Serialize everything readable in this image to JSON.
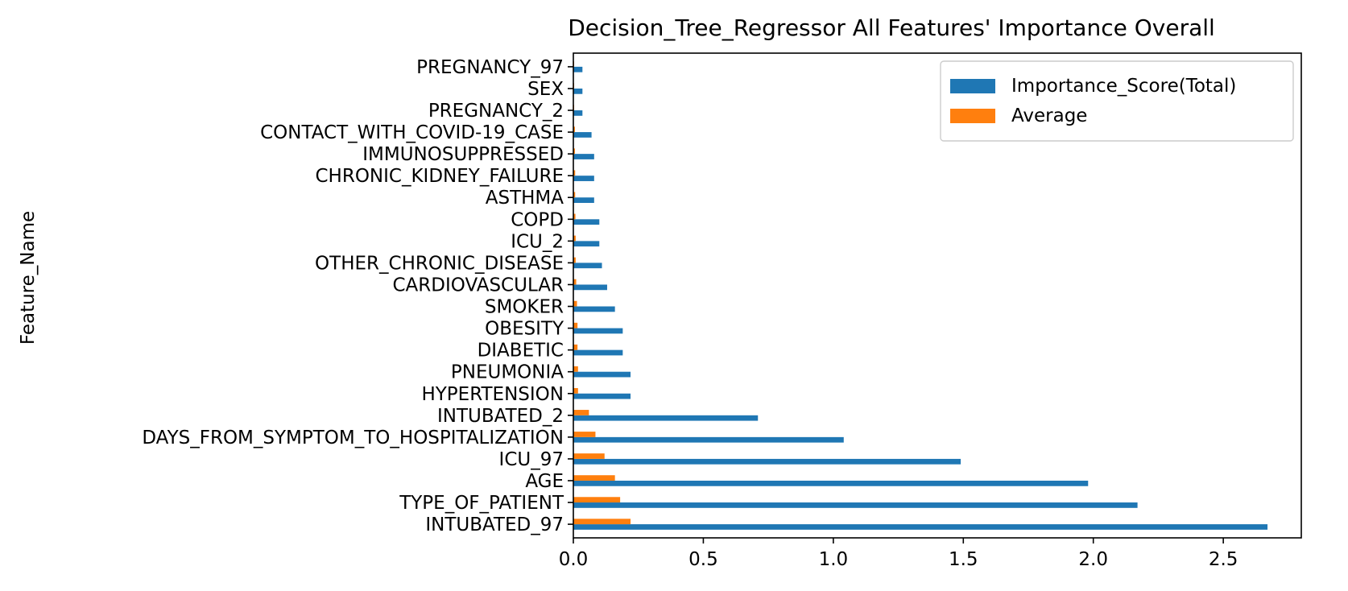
{
  "chart_data": {
    "type": "bar",
    "orientation": "horizontal",
    "title": "Decision_Tree_Regressor All Features' Importance Overall",
    "xlabel": "",
    "ylabel": "Feature_Name",
    "xlim": [
      0,
      2.8
    ],
    "xticks": [
      0.0,
      0.5,
      1.0,
      1.5,
      2.0,
      2.5
    ],
    "xtick_labels": [
      "0.0",
      "0.5",
      "1.0",
      "1.5",
      "2.0",
      "2.5"
    ],
    "grid": false,
    "legend_position": "top-right",
    "categories": [
      "INTUBATED_97",
      "TYPE_OF_PATIENT",
      "AGE",
      "ICU_97",
      "DAYS_FROM_SYMPTOM_TO_HOSPITALIZATION",
      "INTUBATED_2",
      "HYPERTENSION",
      "PNEUMONIA",
      "DIABETIC",
      "OBESITY",
      "SMOKER",
      "CARDIOVASCULAR",
      "OTHER_CHRONIC_DISEASE",
      "ICU_2",
      "COPD",
      "ASTHMA",
      "CHRONIC_KIDNEY_FAILURE",
      "IMMUNOSUPPRESSED",
      "CONTACT_WITH_COVID-19_CASE",
      "PREGNANCY_2",
      "SEX",
      "PREGNANCY_97"
    ],
    "series": [
      {
        "name": "Importance_Score(Total)",
        "color": "#1f77b4",
        "values": [
          2.67,
          2.17,
          1.98,
          1.49,
          1.04,
          0.71,
          0.22,
          0.22,
          0.19,
          0.19,
          0.16,
          0.13,
          0.11,
          0.1,
          0.1,
          0.08,
          0.08,
          0.08,
          0.07,
          0.035,
          0.035,
          0.035
        ]
      },
      {
        "name": "Average",
        "color": "#ff7f0e",
        "values": [
          0.22,
          0.18,
          0.16,
          0.12,
          0.085,
          0.06,
          0.018,
          0.018,
          0.016,
          0.016,
          0.014,
          0.011,
          0.009,
          0.009,
          0.008,
          0.007,
          0.007,
          0.006,
          0.006,
          0.003,
          0.003,
          0.003
        ]
      }
    ]
  }
}
